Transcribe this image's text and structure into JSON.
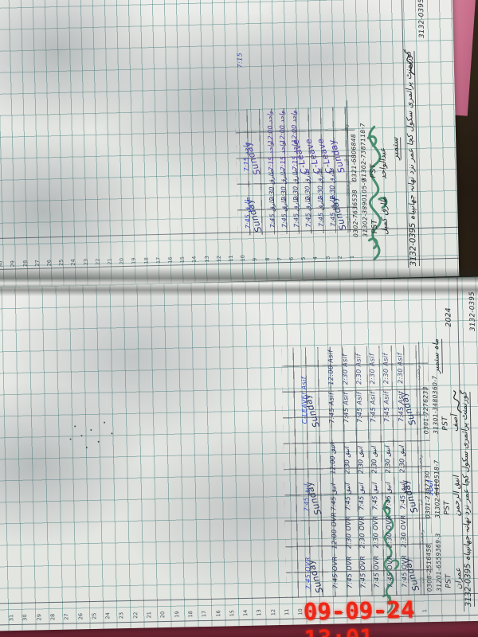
{
  "photo": {
    "timestamp": "09-09-24 13:01"
  },
  "book": {
    "serial_numbers": [
      1,
      2,
      3,
      4,
      5,
      6,
      7,
      8,
      9,
      10,
      11,
      12,
      13,
      14,
      15,
      16,
      17,
      18,
      19,
      20,
      21,
      22,
      23,
      24,
      25,
      26,
      27,
      28,
      29,
      30,
      31
    ],
    "column_labels": {
      "arrival": "آمد",
      "departure": "رخصت"
    },
    "ink_colors": {
      "blue": "#2b46c8",
      "black": "#20262b",
      "green": "#2e7d5a",
      "red": "#ef2616",
      "serial": "#3e4e56"
    },
    "pages": [
      {
        "position": "top",
        "register_no": "3132-0395",
        "title": "گورنمنٹ پرائمری سکول کچا عمر نزد تھانہ جھانپیاہ",
        "month": "ستمبر",
        "year": "",
        "employees": [
          {
            "name": "عبدالواحد",
            "grade": "PST",
            "cnic": "31302-7387118-7",
            "phone": "0321-6806848",
            "sig": "واحد",
            "ink": "#4b35a0",
            "arrival": [
              "Sunday",
              "C-Leave",
              "C-Leave",
              "C-Leave",
              "7:15",
              "7:15",
              "7:15",
              "Sunday",
              "7:15"
            ],
            "departure": [
              "Sunday",
              "",
              "",
              "",
              "12:00",
              "12:00",
              "12:00",
              "Sunday",
              ""
            ]
          },
          {
            "name": "طارق کمیل",
            "grade": "PST",
            "cnic": "31302-3890105-9",
            "phone": "0302-7636538",
            "sig": "طارق",
            "ink": "#2c3a75",
            "arrival": [
              "Sunday",
              "7:45",
              "7:45",
              "7:45",
              "7:45",
              "7:45",
              "7:45",
              "Sunday",
              "7:45"
            ],
            "departure": [
              "Sunday",
              "2:30",
              "2:30",
              "2:30",
              "2:30",
              "2:30",
              "2:30",
              "Sunday",
              ""
            ]
          }
        ]
      },
      {
        "position": "bottom",
        "register_no": "3132-0395",
        "title": "گورنمنٹ پرائمری سکول کچا عمر نزد تھانہ جھانپیاہ",
        "month": "ماہ ستمبر",
        "year": "2024",
        "side_note": "اتحاد",
        "employees": [
          {
            "name": "آصف",
            "grade": "PST",
            "cnic": "31301-3480360-7",
            "phone": "0301-7276233",
            "sig": "Asif",
            "ink": "#252f60",
            "arrival": [
              "Sunday",
              "7:45",
              "7:45",
              "7:45",
              "7:45",
              "7:45",
              "7:45",
              "Sunday",
              "C-LEAVE!"
            ],
            "departure": [
              "Sunday",
              "2:30",
              "2:30",
              "2:30",
              "2:30",
              "2:30",
              "12:00",
              "Sunday",
              ""
            ]
          },
          {
            "name": "انیق الرحمن",
            "grade": "PST",
            "cnic": "31302-6410518-7",
            "phone": "0301-2357730",
            "sig": "انیق",
            "ink": "#20294f",
            "arrival": [
              "Sunday",
              "7:45",
              "7:45",
              "7:45",
              "7:45",
              "7:45",
              "7:45",
              "Sunday",
              "7:45"
            ],
            "departure": [
              "Sunday",
              "2:30",
              "2:30",
              "2:30",
              "2:30",
              "2:30",
              "12:00",
              "Sunday",
              ""
            ]
          },
          {
            "name": "عمران",
            "grade": "PST",
            "cnic": "31201-6559369-3",
            "phone": "0308-2516458",
            "sig": "OVR",
            "ink": "#1c254a",
            "arrival": [
              "Sunday",
              "7:45",
              "7:45",
              "7:45",
              "7:45",
              "7:45",
              "7:45",
              "Sunday",
              "7:45"
            ],
            "departure": [
              "Sunday",
              "2:30",
              "2:30",
              "2:30",
              "2:30",
              "2:30",
              "12:00",
              "Sunday",
              ""
            ]
          }
        ]
      }
    ]
  }
}
